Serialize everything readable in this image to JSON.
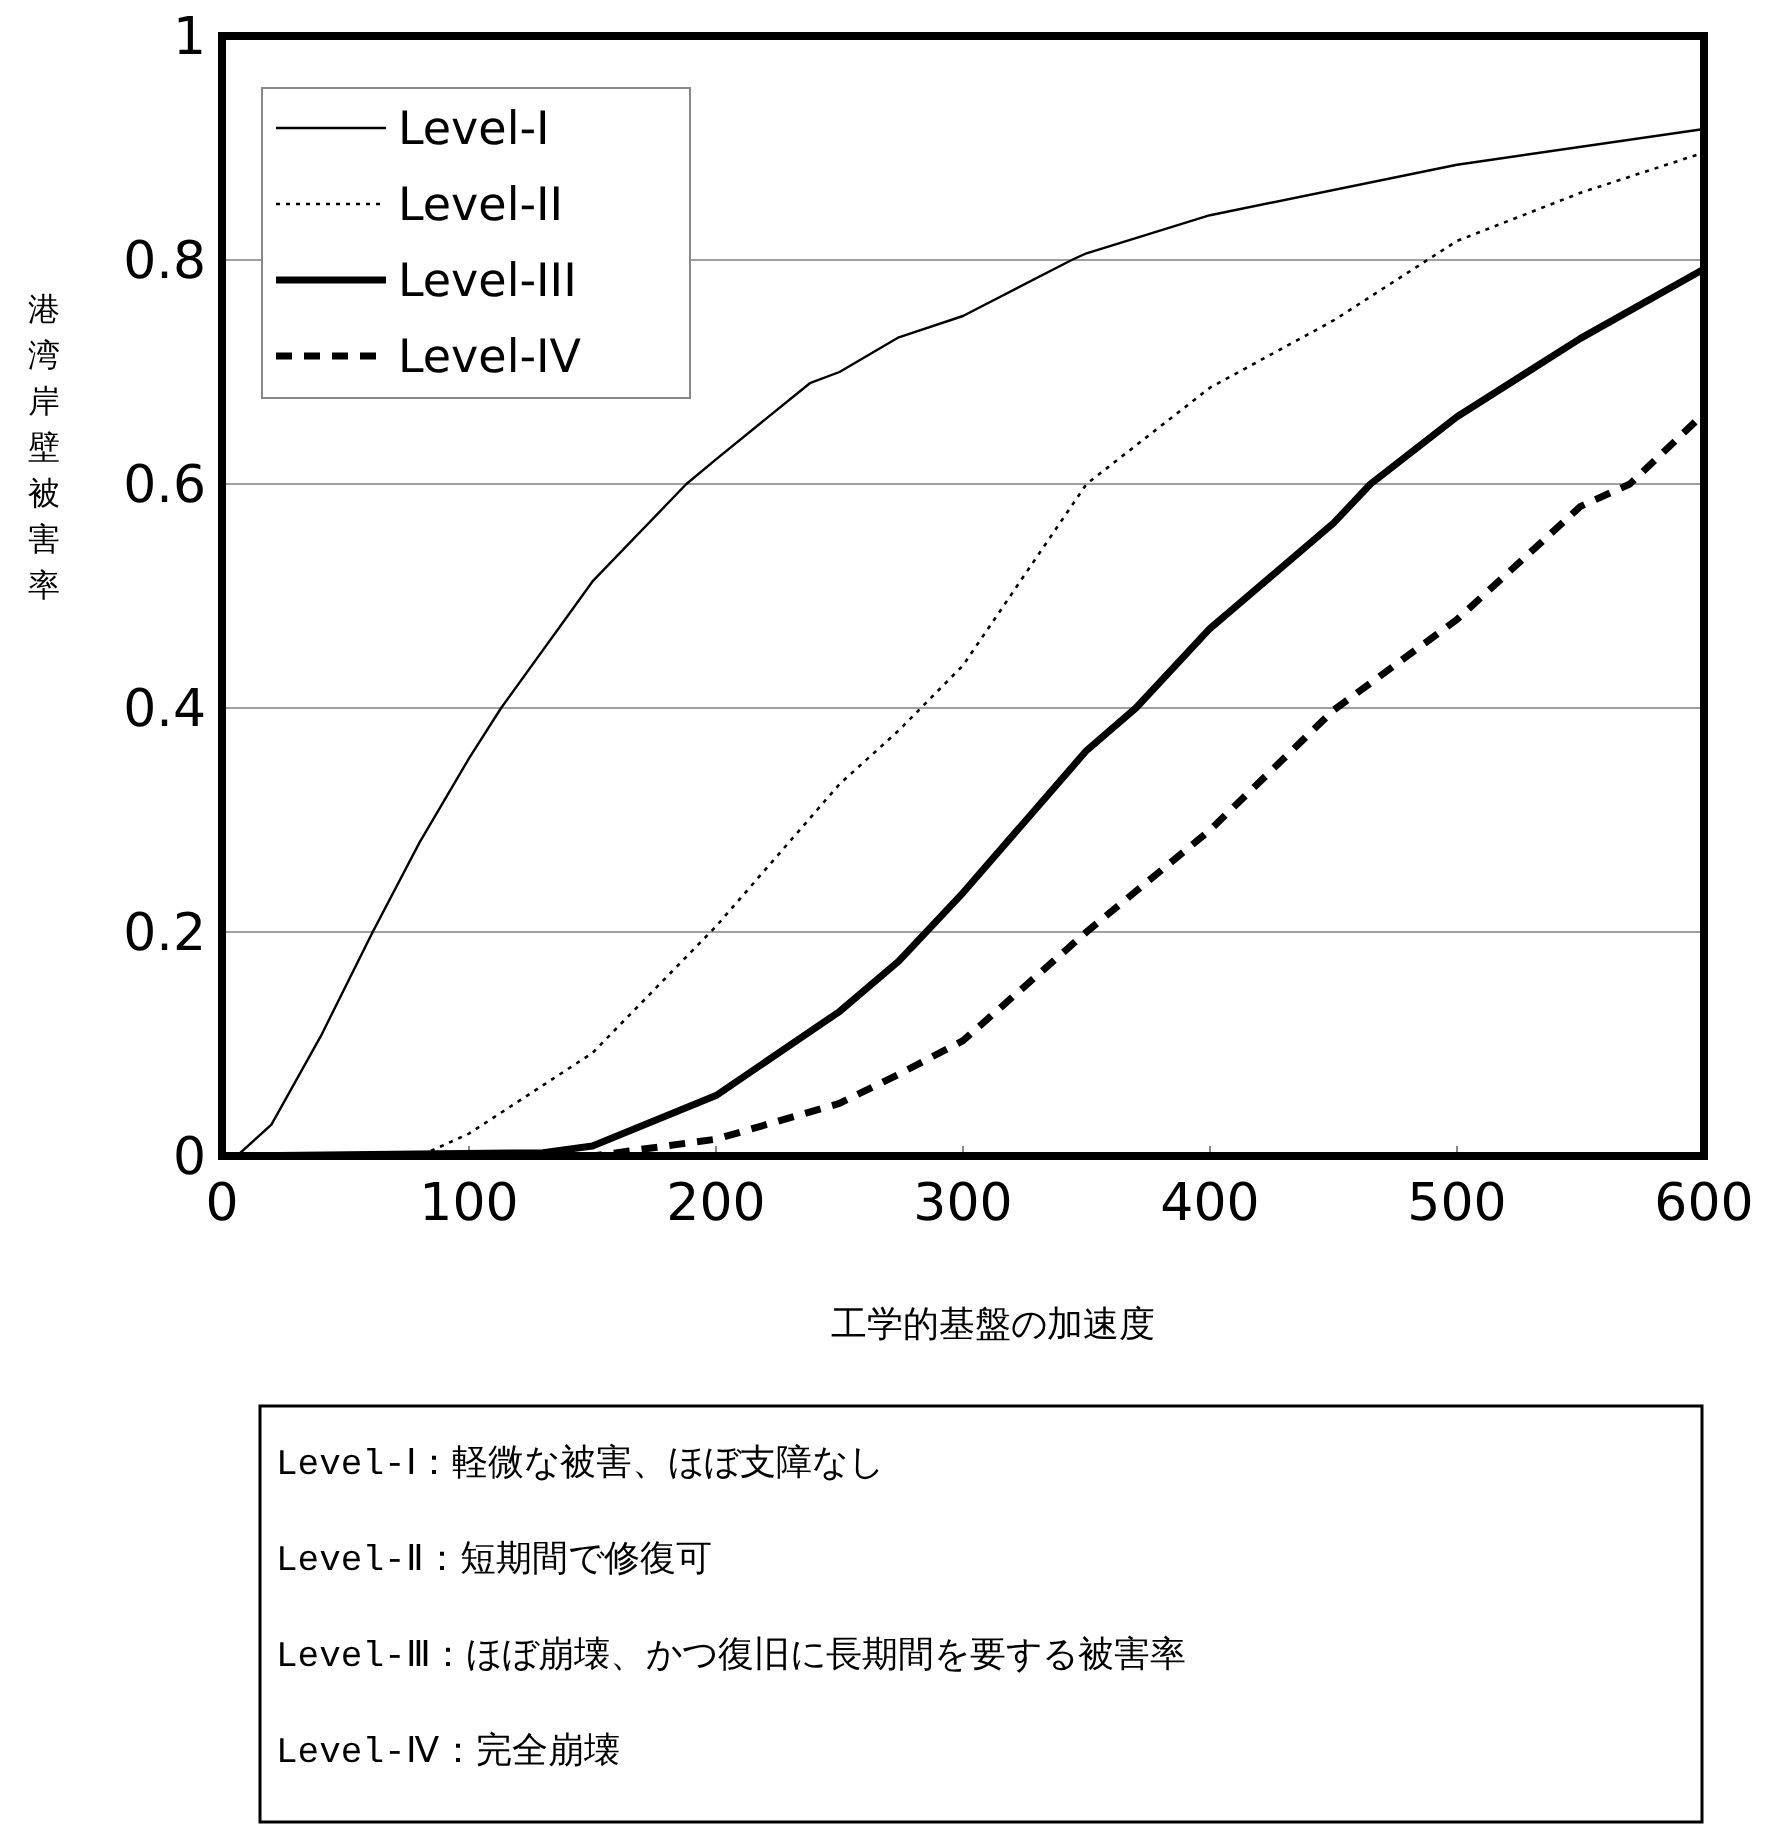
{
  "chart_data": {
    "type": "line",
    "xlabel": "工学的基盤の加速度",
    "ylabel": "港湾岸壁被害率",
    "xlim": [
      0,
      600
    ],
    "ylim": [
      0,
      1
    ],
    "xticks": [
      0,
      100,
      200,
      300,
      400,
      500,
      600
    ],
    "yticks": [
      0,
      0.2,
      0.4,
      0.6,
      0.8,
      1
    ],
    "grid": "y",
    "legend": "top left",
    "series": [
      {
        "name": "Level-I",
        "color": "#000000",
        "line_style": "solid",
        "x": [
          6,
          20,
          40,
          61,
          80,
          100,
          113,
          150,
          188,
          200,
          238,
          250,
          274,
          300,
          344,
          350,
          400,
          500,
          600
        ],
        "values": [
          0,
          0.028,
          0.107,
          0.2,
          0.28,
          0.355,
          0.4,
          0.513,
          0.6,
          0.622,
          0.69,
          0.7,
          0.731,
          0.75,
          0.8,
          0.806,
          0.84,
          0.885,
          0.917
        ]
      },
      {
        "name": "Level-II",
        "color": "#000000",
        "line_style": "dotted",
        "x": [
          0,
          80,
          100,
          150,
          200,
          250,
          274,
          300,
          350,
          400,
          450,
          500,
          550,
          600
        ],
        "values": [
          0,
          0,
          0.02,
          0.092,
          0.205,
          0.332,
          0.38,
          0.438,
          0.6,
          0.686,
          0.746,
          0.817,
          0.86,
          0.896
        ]
      },
      {
        "name": "Level-III",
        "color": "#000000",
        "line_style": "solid",
        "x": [
          0,
          130,
          150,
          200,
          250,
          274,
          300,
          350,
          370,
          400,
          450,
          465,
          500,
          550,
          600
        ],
        "values": [
          0,
          0.003,
          0.009,
          0.054,
          0.129,
          0.174,
          0.235,
          0.362,
          0.4,
          0.471,
          0.565,
          0.6,
          0.66,
          0.73,
          0.792
        ]
      },
      {
        "name": "Level-IV",
        "color": "#000000",
        "line_style": "dashed",
        "x": [
          0,
          150,
          200,
          250,
          274,
          300,
          350,
          400,
          450,
          500,
          550,
          570,
          600
        ],
        "values": [
          0,
          0,
          0.015,
          0.047,
          0.073,
          0.103,
          0.2,
          0.291,
          0.398,
          0.479,
          0.58,
          0.6,
          0.663
        ]
      }
    ],
    "annotations": [
      "Level-Ⅰ：軽微な被害、ほぼ支障なし",
      "Level-Ⅱ：短期間で修復可",
      "Level-Ⅲ：ほぼ崩壊、かつ復旧に長期間を要する被害率",
      "Level-Ⅳ：完全崩壊"
    ]
  }
}
